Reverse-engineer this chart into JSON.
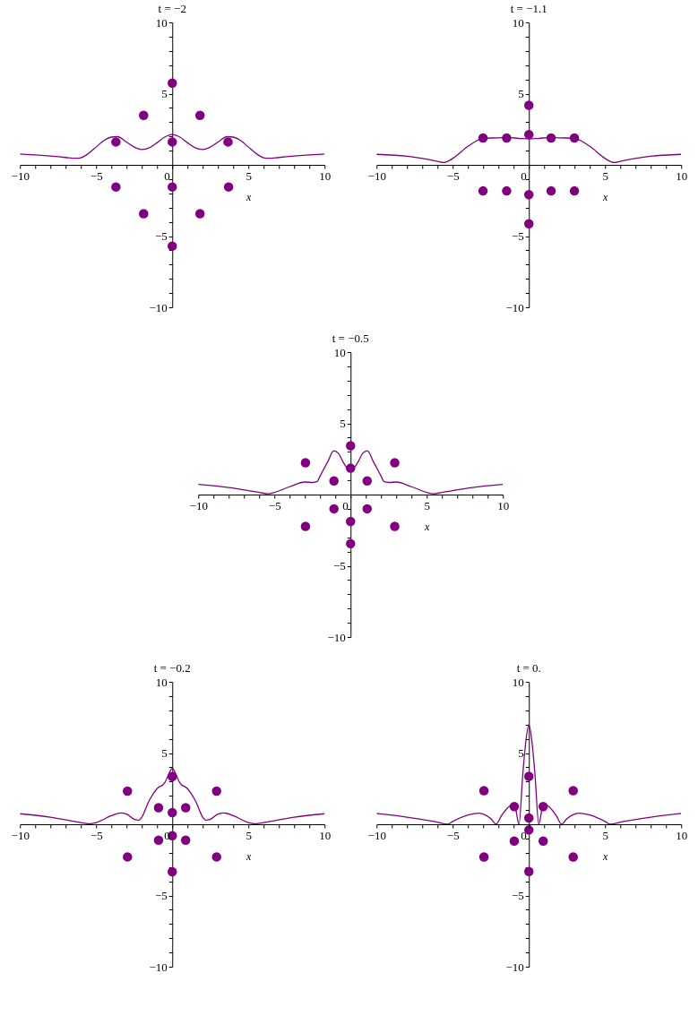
{
  "chart_data": [
    {
      "type": "line",
      "title": "t = −2",
      "xlabel": "x",
      "xlim": [
        -10,
        10
      ],
      "ylim": [
        -10,
        10
      ],
      "xticks": [
        -10,
        {
          "value": -9,
          "label": null
        },
        {
          "value": -8,
          "label": null
        },
        {
          "value": -7,
          "label": null
        },
        {
          "value": -6,
          "label": null
        },
        -5,
        {
          "value": -4,
          "label": null
        },
        {
          "value": -3,
          "label": null
        },
        {
          "value": -2,
          "label": null
        },
        {
          "value": -1,
          "label": null
        },
        0,
        {
          "value": 1,
          "label": null
        },
        {
          "value": 2,
          "label": null
        },
        {
          "value": 3,
          "label": null
        },
        {
          "value": 4,
          "label": null
        },
        5,
        {
          "value": 6,
          "label": null
        },
        {
          "value": 7,
          "label": null
        },
        {
          "value": 8,
          "label": null
        },
        {
          "value": 9,
          "label": null
        },
        10
      ],
      "yticks": [
        -10,
        {
          "value": -9,
          "label": null
        },
        {
          "value": -8,
          "label": null
        },
        {
          "value": -7,
          "label": null
        },
        {
          "value": -6,
          "label": null
        },
        -5,
        {
          "value": -4,
          "label": null
        },
        {
          "value": -3,
          "label": null
        },
        {
          "value": -2,
          "label": null
        },
        {
          "value": -1,
          "label": null
        },
        {
          "value": 0,
          "label": null
        },
        {
          "value": 1,
          "label": null
        },
        {
          "value": 2,
          "label": null
        },
        {
          "value": 3,
          "label": null
        },
        {
          "value": 4,
          "label": null
        },
        5,
        {
          "value": 6,
          "label": null
        },
        {
          "value": 7,
          "label": null
        },
        {
          "value": 8,
          "label": null
        },
        {
          "value": 9,
          "label": null
        },
        10
      ],
      "series": [
        {
          "color": "#800080",
          "x": [
            -10,
            -9,
            -8,
            -7,
            -6.3,
            -6,
            -5.5,
            -5,
            -4.5,
            -4,
            -3.6,
            -3,
            -2.5,
            -2,
            -1.5,
            -1,
            -0.5,
            0,
            0.5,
            1,
            1.5,
            2,
            2.5,
            3,
            3.6,
            4,
            4.5,
            5,
            5.5,
            6,
            6.3,
            7,
            8,
            9,
            10
          ],
          "values": [
            0.76,
            0.7,
            0.62,
            0.52,
            0.46,
            0.5,
            0.8,
            1.25,
            1.7,
            1.95,
            1.98,
            1.6,
            1.25,
            1.08,
            1.2,
            1.55,
            1.95,
            2.13,
            1.95,
            1.55,
            1.2,
            1.08,
            1.25,
            1.6,
            1.98,
            1.95,
            1.7,
            1.25,
            0.8,
            0.5,
            0.46,
            0.52,
            0.62,
            0.7,
            0.76
          ]
        },
        {
          "type": "scatter",
          "marker": "circle",
          "color": "#800080",
          "x": [
            0,
            -1.88,
            1.82,
            -3.7,
            0,
            3.66,
            -3.7,
            0,
            3.7,
            -1.88,
            1.82,
            0
          ],
          "values": [
            5.74,
            3.47,
            3.47,
            1.61,
            1.61,
            1.61,
            -1.55,
            -1.55,
            -1.55,
            -3.43,
            -3.43,
            -5.7
          ]
        }
      ]
    },
    {
      "type": "line",
      "title": "t = −1.1",
      "xlabel": "x",
      "xlim": [
        -10,
        10
      ],
      "ylim": [
        -10,
        10
      ],
      "xticks": [
        -10,
        {
          "value": -9,
          "label": null
        },
        {
          "value": -8,
          "label": null
        },
        {
          "value": -7,
          "label": null
        },
        {
          "value": -6,
          "label": null
        },
        -5,
        {
          "value": -4,
          "label": null
        },
        {
          "value": -3,
          "label": null
        },
        {
          "value": -2,
          "label": null
        },
        {
          "value": -1,
          "label": null
        },
        0,
        {
          "value": 1,
          "label": null
        },
        {
          "value": 2,
          "label": null
        },
        {
          "value": 3,
          "label": null
        },
        {
          "value": 4,
          "label": null
        },
        5,
        {
          "value": 6,
          "label": null
        },
        {
          "value": 7,
          "label": null
        },
        {
          "value": 8,
          "label": null
        },
        {
          "value": 9,
          "label": null
        },
        10
      ],
      "yticks": [
        -10,
        {
          "value": -9,
          "label": null
        },
        {
          "value": -8,
          "label": null
        },
        {
          "value": -7,
          "label": null
        },
        {
          "value": -6,
          "label": null
        },
        -5,
        {
          "value": -4,
          "label": null
        },
        {
          "value": -3,
          "label": null
        },
        {
          "value": -2,
          "label": null
        },
        {
          "value": -1,
          "label": null
        },
        {
          "value": 0,
          "label": null
        },
        {
          "value": 1,
          "label": null
        },
        {
          "value": 2,
          "label": null
        },
        {
          "value": 3,
          "label": null
        },
        {
          "value": 4,
          "label": null
        },
        5,
        {
          "value": 6,
          "label": null
        },
        {
          "value": 7,
          "label": null
        },
        {
          "value": 8,
          "label": null
        },
        {
          "value": 9,
          "label": null
        },
        10
      ],
      "series": [
        {
          "color": "#800080",
          "x": [
            -10,
            -8,
            -6,
            -5.6,
            -5,
            -4,
            -3.2,
            -3,
            -2,
            -1.5,
            -0.5,
            0,
            0.5,
            1.5,
            2,
            3,
            3.2,
            4,
            5,
            5.6,
            6,
            8,
            10
          ],
          "values": [
            0.74,
            0.6,
            0.25,
            0.16,
            0.45,
            1.3,
            1.8,
            1.86,
            1.9,
            1.93,
            1.85,
            1.83,
            1.85,
            1.93,
            1.9,
            1.86,
            1.8,
            1.3,
            0.45,
            0.16,
            0.25,
            0.6,
            0.74
          ]
        },
        {
          "type": "scatter",
          "marker": "circle",
          "color": "#800080",
          "x": [
            0,
            -3.01,
            -1.46,
            0,
            1.46,
            2.99,
            -3.01,
            -1.46,
            0,
            1.46,
            2.99,
            0
          ],
          "values": [
            4.18,
            1.89,
            1.89,
            2.13,
            1.89,
            1.89,
            -1.83,
            -1.83,
            -2.09,
            -1.83,
            -1.83,
            -4.14
          ]
        }
      ]
    },
    {
      "type": "line",
      "title": "t = −0.5",
      "xlabel": "x",
      "xlim": [
        -10,
        10
      ],
      "ylim": [
        -10,
        10
      ],
      "xticks": [
        -10,
        {
          "value": -9,
          "label": null
        },
        {
          "value": -8,
          "label": null
        },
        {
          "value": -7,
          "label": null
        },
        {
          "value": -6,
          "label": null
        },
        -5,
        {
          "value": -4,
          "label": null
        },
        {
          "value": -3,
          "label": null
        },
        {
          "value": -2,
          "label": null
        },
        {
          "value": -1,
          "label": null
        },
        0,
        {
          "value": 1,
          "label": null
        },
        {
          "value": 2,
          "label": null
        },
        {
          "value": 3,
          "label": null
        },
        {
          "value": 4,
          "label": null
        },
        5,
        {
          "value": 6,
          "label": null
        },
        {
          "value": 7,
          "label": null
        },
        {
          "value": 8,
          "label": null
        },
        {
          "value": 9,
          "label": null
        },
        10
      ],
      "yticks": [
        -10,
        {
          "value": -9,
          "label": null
        },
        {
          "value": -8,
          "label": null
        },
        {
          "value": -7,
          "label": null
        },
        {
          "value": -6,
          "label": null
        },
        -5,
        {
          "value": -4,
          "label": null
        },
        {
          "value": -3,
          "label": null
        },
        {
          "value": -2,
          "label": null
        },
        {
          "value": -1,
          "label": null
        },
        {
          "value": 0,
          "label": null
        },
        {
          "value": 1,
          "label": null
        },
        {
          "value": 2,
          "label": null
        },
        {
          "value": 3,
          "label": null
        },
        {
          "value": 4,
          "label": null
        },
        5,
        {
          "value": 6,
          "label": null
        },
        {
          "value": 7,
          "label": null
        },
        {
          "value": 8,
          "label": null
        },
        {
          "value": 9,
          "label": null
        },
        10
      ],
      "series": [
        {
          "color": "#800080",
          "x": [
            -10,
            -8,
            -6,
            -5.4,
            -5,
            -4,
            -3,
            -2.5,
            -2.2,
            -2,
            -1.5,
            -1.1,
            -0.8,
            -0.5,
            -0.2,
            0,
            0.2,
            0.5,
            0.8,
            1.1,
            1.5,
            2,
            2.2,
            2.5,
            3,
            4,
            5,
            5.4,
            6,
            8,
            10
          ],
          "values": [
            0.72,
            0.5,
            0.15,
            0.05,
            0.15,
            0.55,
            0.88,
            0.85,
            0.9,
            1.3,
            2.3,
            3.07,
            2.9,
            2.3,
            1.85,
            1.79,
            1.85,
            2.3,
            2.9,
            3.07,
            2.3,
            1.3,
            0.9,
            0.85,
            0.88,
            0.55,
            0.15,
            0.05,
            0.15,
            0.5,
            0.72
          ]
        },
        {
          "type": "scatter",
          "marker": "circle",
          "color": "#800080",
          "x": [
            0,
            -2.96,
            2.9,
            -1.09,
            1.09,
            0,
            -1.09,
            1.09,
            -2.96,
            2.9,
            0,
            0
          ],
          "values": [
            3.43,
            2.23,
            2.23,
            0.96,
            0.96,
            1.85,
            -1.0,
            -1.0,
            -2.23,
            -2.23,
            -1.89,
            -3.45
          ]
        }
      ]
    },
    {
      "type": "line",
      "title": "t = −0.2",
      "xlabel": "x",
      "xlim": [
        -10,
        10
      ],
      "ylim": [
        -10,
        10
      ],
      "xticks": [
        -10,
        {
          "value": -9,
          "label": null
        },
        {
          "value": -8,
          "label": null
        },
        {
          "value": -7,
          "label": null
        },
        {
          "value": -6,
          "label": null
        },
        -5,
        {
          "value": -4,
          "label": null
        },
        {
          "value": -3,
          "label": null
        },
        {
          "value": -2,
          "label": null
        },
        {
          "value": -1,
          "label": null
        },
        0,
        {
          "value": 1,
          "label": null
        },
        {
          "value": 2,
          "label": null
        },
        {
          "value": 3,
          "label": null
        },
        {
          "value": 4,
          "label": null
        },
        5,
        {
          "value": 6,
          "label": null
        },
        {
          "value": 7,
          "label": null
        },
        {
          "value": 8,
          "label": null
        },
        {
          "value": 9,
          "label": null
        },
        10
      ],
      "yticks": [
        -10,
        {
          "value": -9,
          "label": null
        },
        {
          "value": -8,
          "label": null
        },
        {
          "value": -7,
          "label": null
        },
        {
          "value": -6,
          "label": null
        },
        -5,
        {
          "value": -4,
          "label": null
        },
        {
          "value": -3,
          "label": null
        },
        {
          "value": -2,
          "label": null
        },
        {
          "value": -1,
          "label": null
        },
        {
          "value": 0,
          "label": null
        },
        {
          "value": 1,
          "label": null
        },
        {
          "value": 2,
          "label": null
        },
        {
          "value": 3,
          "label": null
        },
        {
          "value": 4,
          "label": null
        },
        5,
        {
          "value": 6,
          "label": null
        },
        {
          "value": 7,
          "label": null
        },
        {
          "value": 8,
          "label": null
        },
        {
          "value": 9,
          "label": null
        },
        10
      ],
      "series": [
        {
          "color": "#800080",
          "x": [
            -10,
            -8,
            -6,
            -5.4,
            -5,
            -4,
            -3.4,
            -3,
            -2.5,
            -2.2,
            -2,
            -1.5,
            -1,
            -0.5,
            -0.2,
            0,
            0.2,
            0.5,
            1,
            1.5,
            2,
            2.2,
            2.5,
            3,
            3.4,
            4,
            5,
            5.4,
            6,
            8,
            10
          ],
          "values": [
            0.74,
            0.5,
            0.12,
            0.03,
            0.12,
            0.6,
            0.8,
            0.72,
            0.35,
            0.28,
            0.5,
            1.7,
            2.5,
            2.9,
            3.6,
            3.94,
            3.6,
            2.9,
            2.5,
            1.7,
            0.5,
            0.28,
            0.35,
            0.72,
            0.8,
            0.6,
            0.12,
            0.03,
            0.12,
            0.5,
            0.74
          ]
        },
        {
          "type": "scatter",
          "marker": "circle",
          "color": "#800080",
          "x": [
            0,
            -2.94,
            2.91,
            -0.9,
            0.88,
            0,
            0,
            -0.9,
            0.88,
            -2.94,
            2.91,
            0
          ],
          "values": [
            3.35,
            2.33,
            2.33,
            1.16,
            1.16,
            0.82,
            -0.8,
            -1.12,
            -1.12,
            -2.29,
            -2.29,
            -3.33
          ]
        }
      ]
    },
    {
      "type": "line",
      "title": "t = 0.",
      "xlabel": "x",
      "xlim": [
        -10,
        10
      ],
      "ylim": [
        -10,
        10
      ],
      "xticks": [
        -10,
        {
          "value": -9,
          "label": null
        },
        {
          "value": -8,
          "label": null
        },
        {
          "value": -7,
          "label": null
        },
        {
          "value": -6,
          "label": null
        },
        -5,
        {
          "value": -4,
          "label": null
        },
        {
          "value": -3,
          "label": null
        },
        {
          "value": -2,
          "label": null
        },
        {
          "value": -1,
          "label": null
        },
        0,
        {
          "value": 1,
          "label": null
        },
        {
          "value": 2,
          "label": null
        },
        {
          "value": 3,
          "label": null
        },
        {
          "value": 4,
          "label": null
        },
        5,
        {
          "value": 6,
          "label": null
        },
        {
          "value": 7,
          "label": null
        },
        {
          "value": 8,
          "label": null
        },
        {
          "value": 9,
          "label": null
        },
        10
      ],
      "yticks": [
        -10,
        {
          "value": -9,
          "label": null
        },
        {
          "value": -8,
          "label": null
        },
        {
          "value": -7,
          "label": null
        },
        {
          "value": -6,
          "label": null
        },
        -5,
        {
          "value": -4,
          "label": null
        },
        {
          "value": -3,
          "label": null
        },
        {
          "value": -2,
          "label": null
        },
        {
          "value": -1,
          "label": null
        },
        {
          "value": 0,
          "label": null
        },
        {
          "value": 1,
          "label": null
        },
        {
          "value": 2,
          "label": null
        },
        {
          "value": 3,
          "label": null
        },
        {
          "value": 4,
          "label": null
        },
        5,
        {
          "value": 6,
          "label": null
        },
        {
          "value": 7,
          "label": null
        },
        {
          "value": 8,
          "label": null
        },
        {
          "value": 9,
          "label": null
        },
        10
      ],
      "series": [
        {
          "color": "#800080",
          "x": [
            -10,
            -8,
            -6,
            -5.35,
            -5,
            -4,
            -3.3,
            -3,
            -2.5,
            -2.15,
            -1.8,
            -1.4,
            -1.1,
            -0.9,
            -0.65,
            -0.4,
            -0.2,
            0,
            0.2,
            0.4,
            0.65,
            0.9,
            1.1,
            1.4,
            1.8,
            2.15,
            2.5,
            3,
            3.3,
            4,
            5,
            5.35,
            6,
            8,
            10
          ],
          "values": [
            0.76,
            0.5,
            0.15,
            0,
            0.2,
            0.65,
            0.78,
            0.72,
            0.4,
            0,
            0.6,
            1.15,
            1.38,
            1.2,
            0,
            3.5,
            5.8,
            7.0,
            5.8,
            3.5,
            0,
            1.2,
            1.38,
            1.15,
            0.6,
            0,
            0.4,
            0.72,
            0.78,
            0.65,
            0.2,
            0,
            0.15,
            0.5,
            0.76
          ]
        },
        {
          "type": "scatter",
          "marker": "circle",
          "color": "#800080",
          "x": [
            0,
            -2.95,
            2.91,
            -0.96,
            0.94,
            0,
            0,
            -0.96,
            0.94,
            -2.95,
            2.91,
            0
          ],
          "values": [
            3.36,
            2.36,
            2.36,
            1.24,
            1.24,
            0.44,
            -0.4,
            -1.18,
            -1.18,
            -2.3,
            -2.3,
            -3.32
          ]
        }
      ]
    }
  ]
}
